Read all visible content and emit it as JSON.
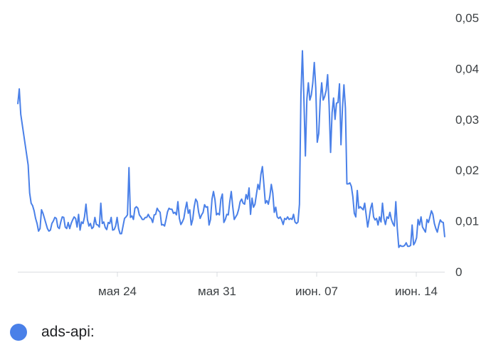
{
  "chart_data": {
    "type": "line",
    "y_ticks": [
      {
        "value": 0.05,
        "label": "0,05"
      },
      {
        "value": 0.04,
        "label": "0,04"
      },
      {
        "value": 0.03,
        "label": "0,03"
      },
      {
        "value": 0.02,
        "label": "0,02"
      },
      {
        "value": 0.01,
        "label": "0,01"
      },
      {
        "value": 0,
        "label": "0"
      }
    ],
    "ylim": [
      0,
      0.05
    ],
    "x_ticks": [
      {
        "day": 7,
        "label": "мая 24"
      },
      {
        "day": 14,
        "label": "мая 31"
      },
      {
        "day": 21,
        "label": "июн. 07"
      },
      {
        "day": 28,
        "label": "июн. 14"
      }
    ],
    "x_start_date": "мая 17",
    "xlim": [
      0,
      30
    ],
    "series": [
      {
        "name": "ads-api:",
        "color": "#4a80e8",
        "values": [
          0.033,
          0.036,
          0.031,
          0.029,
          0.027,
          0.025,
          0.023,
          0.021,
          0.0155,
          0.0135,
          0.013,
          0.012,
          0.0105,
          0.0095,
          0.008,
          0.0085,
          0.0122,
          0.0115,
          0.0105,
          0.0095,
          0.0085,
          0.008,
          0.0082,
          0.0095,
          0.01,
          0.0107,
          0.0105,
          0.0088,
          0.0085,
          0.0098,
          0.0108,
          0.0107,
          0.0088,
          0.0085,
          0.0097,
          0.0085,
          0.0095,
          0.0102,
          0.0108,
          0.0105,
          0.0088,
          0.0113,
          0.0082,
          0.0098,
          0.0095,
          0.0108,
          0.0133,
          0.0102,
          0.009,
          0.0095,
          0.0085,
          0.0088,
          0.0107,
          0.0093,
          0.0092,
          0.0088,
          0.0135,
          0.0095,
          0.0098,
          0.0087,
          0.0083,
          0.0097,
          0.0095,
          0.0107,
          0.0082,
          0.0083,
          0.009,
          0.0107,
          0.0085,
          0.0075,
          0.0075,
          0.009,
          0.0105,
          0.0108,
          0.0112,
          0.0205,
          0.0107,
          0.011,
          0.0103,
          0.0125,
          0.0128,
          0.0125,
          0.0112,
          0.0108,
          0.0103,
          0.0103,
          0.0107,
          0.0107,
          0.0113,
          0.0107,
          0.0105,
          0.0097,
          0.0112,
          0.0113,
          0.0125,
          0.012,
          0.0117,
          0.0092,
          0.0093,
          0.009,
          0.0103,
          0.0118,
          0.0125,
          0.0123,
          0.0123,
          0.0115,
          0.0117,
          0.0112,
          0.0138,
          0.0105,
          0.0093,
          0.0098,
          0.0105,
          0.0123,
          0.0137,
          0.0115,
          0.0122,
          0.0092,
          0.0103,
          0.0128,
          0.0143,
          0.0138,
          0.0117,
          0.0105,
          0.0112,
          0.0117,
          0.0132,
          0.0127,
          0.0128,
          0.0092,
          0.0103,
          0.0143,
          0.0158,
          0.0142,
          0.0112,
          0.0115,
          0.0112,
          0.0143,
          0.0153,
          0.0097,
          0.0103,
          0.0113,
          0.0112,
          0.0138,
          0.0158,
          0.0128,
          0.0103,
          0.0108,
          0.0113,
          0.0123,
          0.0138,
          0.0143,
          0.0135,
          0.0133,
          0.0152,
          0.0143,
          0.0165,
          0.0113,
          0.0145,
          0.0127,
          0.0133,
          0.0153,
          0.0172,
          0.0162,
          0.0192,
          0.0207,
          0.0172,
          0.0135,
          0.014,
          0.0133,
          0.0148,
          0.0172,
          0.0155,
          0.0117,
          0.0127,
          0.0108,
          0.0105,
          0.0108,
          0.0102,
          0.0093,
          0.0105,
          0.0103,
          0.0108,
          0.0103,
          0.0105,
          0.0103,
          0.0113,
          0.0098,
          0.0095,
          0.0098,
          0.0133,
          0.035,
          0.0435,
          0.034,
          0.0228,
          0.034,
          0.0372,
          0.0338,
          0.0348,
          0.0372,
          0.0412,
          0.0362,
          0.0255,
          0.0272,
          0.0338,
          0.0372,
          0.0338,
          0.0345,
          0.0357,
          0.0388,
          0.0328,
          0.0235,
          0.0313,
          0.0342,
          0.03,
          0.0332,
          0.0333,
          0.037,
          0.025,
          0.0322,
          0.0368,
          0.0322,
          0.0173,
          0.0173,
          0.0175,
          0.0168,
          0.0148,
          0.0115,
          0.0108,
          0.016,
          0.0125,
          0.0128,
          0.0125,
          0.0122,
          0.0135,
          0.0112,
          0.0088,
          0.0105,
          0.0125,
          0.0135,
          0.0108,
          0.0102,
          0.0105,
          0.0092,
          0.0108,
          0.0098,
          0.0135,
          0.0105,
          0.0093,
          0.0108,
          0.0105,
          0.0117,
          0.0103,
          0.0095,
          0.009,
          0.0138,
          0.0085,
          0.0048,
          0.0052,
          0.005,
          0.005,
          0.0052,
          0.0057,
          0.005,
          0.005,
          0.0052,
          0.0092,
          0.0053,
          0.0058,
          0.0067,
          0.0103,
          0.0092,
          0.0108,
          0.0088,
          0.0083,
          0.0078,
          0.0103,
          0.0097,
          0.0108,
          0.012,
          0.0113,
          0.0095,
          0.0085,
          0.0078,
          0.0092,
          0.0102,
          0.0098,
          0.0097,
          0.0068
        ]
      }
    ],
    "legend": {
      "position": "bottom-left",
      "label": "ads-api:"
    },
    "grid": false
  }
}
